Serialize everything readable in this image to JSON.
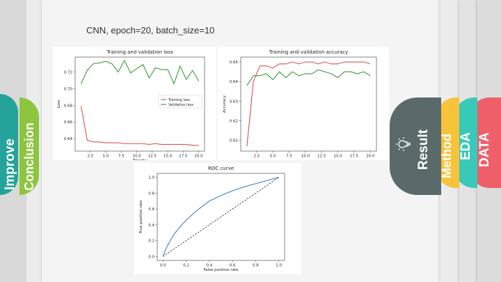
{
  "slide": {
    "heading": "CNN, epoch=20, batch_size=10",
    "colors": {
      "improve": "#23a39a",
      "conclusion": "#8cc63f",
      "result": "#5a6a6a",
      "method": "#f7c33b",
      "eda": "#38c9b8",
      "data": "#ef5f6a",
      "training": "#d9534f",
      "validation": "#3a9a3a",
      "roc": "#3b86c2"
    }
  },
  "tabs": {
    "improve": "Improve",
    "conclusion": "Conclusion",
    "result": "Result",
    "method": "Method",
    "eda": "EDA",
    "data": "DATA",
    "result_icon": "lightbulb-icon"
  },
  "chart_data": [
    {
      "type": "line",
      "title": "Training and validation loss",
      "xlabel": "Epochs",
      "ylabel": "Loss",
      "xlim": [
        0.05,
        20.95
      ],
      "ylim": [
        0.625,
        0.738
      ],
      "xticks": [
        "2.5",
        "5.0",
        "7.5",
        "10.0",
        "12.5",
        "15.0",
        "17.5",
        "20.0"
      ],
      "yticks": [
        "0.64",
        "0.66",
        "0.68",
        "0.70",
        "0.72"
      ],
      "legend": "center-right",
      "grid": false,
      "x": [
        1,
        2,
        3,
        4,
        5,
        6,
        7,
        8,
        9,
        10,
        11,
        12,
        13,
        14,
        15,
        16,
        17,
        18,
        19,
        20
      ],
      "series": [
        {
          "name": "Training loss",
          "values": [
            0.679,
            0.638,
            0.636,
            0.636,
            0.635,
            0.635,
            0.635,
            0.634,
            0.634,
            0.634,
            0.634,
            0.633,
            0.634,
            0.633,
            0.633,
            0.633,
            0.633,
            0.633,
            0.632,
            0.632
          ]
        },
        {
          "name": "Validation loss",
          "values": [
            0.706,
            0.722,
            0.73,
            0.731,
            0.733,
            0.73,
            0.72,
            0.734,
            0.719,
            0.724,
            0.729,
            0.713,
            0.725,
            0.723,
            0.723,
            0.706,
            0.727,
            0.711,
            0.722,
            0.709
          ]
        }
      ]
    },
    {
      "type": "line",
      "title": "Training and validation accuracy",
      "xlabel": "",
      "ylabel": "Accuracy",
      "xlim": [
        0.05,
        20.95
      ],
      "ylim": [
        0.6045,
        0.6525
      ],
      "xticks": [
        "2.5",
        "5.0",
        "7.5",
        "10.0",
        "12.5",
        "15.0",
        "17.5",
        "20.0"
      ],
      "yticks": [
        "0.61",
        "0.62",
        "0.63",
        "0.64",
        "0.65"
      ],
      "grid": false,
      "x": [
        1,
        2,
        3,
        4,
        5,
        6,
        7,
        8,
        9,
        10,
        11,
        12,
        13,
        14,
        15,
        16,
        17,
        18,
        19,
        20
      ],
      "series": [
        {
          "values": [
            0.607,
            0.64,
            0.648,
            0.648,
            0.647,
            0.649,
            0.649,
            0.65,
            0.649,
            0.65,
            0.65,
            0.649,
            0.65,
            0.649,
            0.649,
            0.65,
            0.65,
            0.65,
            0.65,
            0.649
          ]
        },
        {
          "values": [
            0.638,
            0.643,
            0.643,
            0.644,
            0.641,
            0.645,
            0.642,
            0.645,
            0.643,
            0.644,
            0.644,
            0.646,
            0.645,
            0.644,
            0.642,
            0.645,
            0.645,
            0.644,
            0.645,
            0.643
          ]
        }
      ]
    },
    {
      "type": "line",
      "title": "ROC curve",
      "xlabel": "False positive rate",
      "ylabel": "True positive rate",
      "xlim": [
        -0.05,
        1.05
      ],
      "ylim": [
        -0.05,
        1.05
      ],
      "xticks": [
        "0.0",
        "0.2",
        "0.4",
        "0.6",
        "0.8",
        "1.0"
      ],
      "yticks": [
        "0.0",
        "0.2",
        "0.4",
        "0.6",
        "0.8",
        "1.0"
      ],
      "grid": false,
      "x": [
        0.0,
        0.02,
        0.05,
        0.1,
        0.15,
        0.2,
        0.3,
        0.4,
        0.5,
        0.6,
        0.7,
        0.8,
        0.9,
        1.0
      ],
      "series": [
        {
          "values": [
            0.0,
            0.08,
            0.17,
            0.29,
            0.38,
            0.46,
            0.59,
            0.7,
            0.77,
            0.83,
            0.88,
            0.92,
            0.96,
            1.0
          ]
        },
        {
          "values": [
            0.0,
            0.02,
            0.05,
            0.1,
            0.15,
            0.2,
            0.3,
            0.4,
            0.5,
            0.6,
            0.7,
            0.8,
            0.9,
            1.0
          ],
          "style": "dashed"
        }
      ]
    }
  ]
}
